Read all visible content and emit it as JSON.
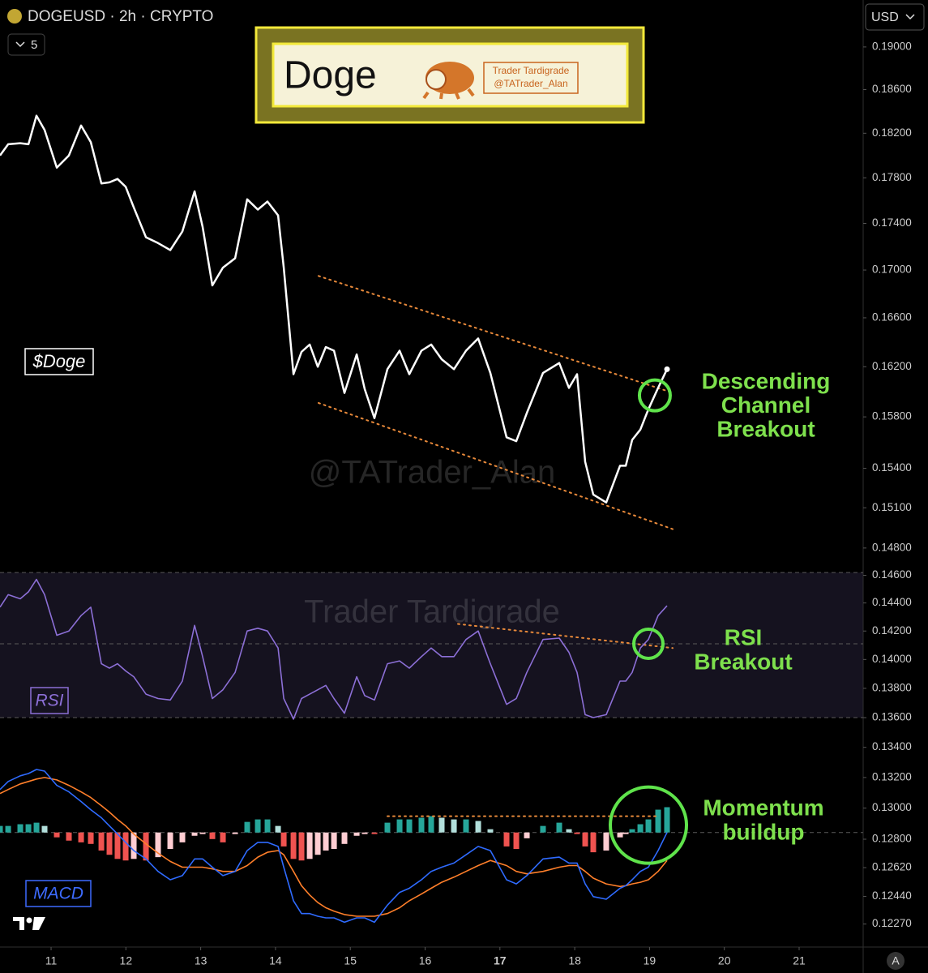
{
  "header": {
    "symbol_line": "DOGEUSD · 2h · CRYPTO",
    "interval_count": "5",
    "currency": "USD",
    "auto_button": "A"
  },
  "banner": {
    "title": "Doge",
    "brand": "Trader Tardigrade",
    "handle": "@TATrader_Alan"
  },
  "chart_data": {
    "type": "line",
    "log_scale": true,
    "xlim": [
      10.317,
      21.856
    ],
    "xticks": [
      11,
      12,
      13,
      14,
      15,
      16,
      17,
      18,
      19,
      20,
      21
    ],
    "xtick_bold": 17,
    "ylim": [
      0.1213,
      0.1945
    ],
    "yticks": [
      {
        "value": 0.19,
        "label": "0.19000"
      },
      {
        "value": 0.186,
        "label": "0.18600"
      },
      {
        "value": 0.182,
        "label": "0.18200"
      },
      {
        "value": 0.178,
        "label": "0.17800"
      },
      {
        "value": 0.174,
        "label": "0.17400"
      },
      {
        "value": 0.17,
        "label": "0.17000"
      },
      {
        "value": 0.166,
        "label": "0.16600"
      },
      {
        "value": 0.162,
        "label": "0.16200"
      },
      {
        "value": 0.158,
        "label": "0.15800"
      },
      {
        "value": 0.154,
        "label": "0.15400"
      },
      {
        "value": 0.151,
        "label": "0.15100"
      },
      {
        "value": 0.148,
        "label": "0.14800"
      },
      {
        "value": 0.146,
        "label": "0.14600"
      },
      {
        "value": 0.144,
        "label": "0.14400"
      },
      {
        "value": 0.142,
        "label": "0.14200"
      },
      {
        "value": 0.14,
        "label": "0.14000"
      },
      {
        "value": 0.138,
        "label": "0.13800"
      },
      {
        "value": 0.136,
        "label": "0.13600"
      },
      {
        "value": 0.134,
        "label": "0.13400"
      },
      {
        "value": 0.132,
        "label": "0.13200"
      },
      {
        "value": 0.13,
        "label": "0.13000"
      },
      {
        "value": 0.128,
        "label": "0.12800"
      },
      {
        "value": 0.1262,
        "label": "0.12620"
      },
      {
        "value": 0.1244,
        "label": "0.12440"
      },
      {
        "value": 0.1227,
        "label": "0.12270"
      }
    ],
    "x": [
      10.317,
      10.426,
      10.588,
      10.697,
      10.805,
      10.913,
      11.076,
      11.238,
      11.401,
      11.531,
      11.672,
      11.78,
      11.888,
      11.997,
      12.105,
      12.268,
      12.43,
      12.593,
      12.755,
      12.918,
      13.026,
      13.156,
      13.297,
      13.46,
      13.622,
      13.763,
      13.893,
      14.034,
      14.11,
      14.24,
      14.348,
      14.457,
      14.565,
      14.673,
      14.782,
      14.922,
      15.085,
      15.193,
      15.323,
      15.496,
      15.659,
      15.789,
      15.951,
      16.081,
      16.222,
      16.385,
      16.547,
      16.71,
      16.872,
      17.089,
      17.219,
      17.36,
      17.576,
      17.793,
      17.923,
      18.031,
      18.14,
      18.248,
      18.421,
      18.606,
      18.682,
      18.768,
      18.877,
      18.985,
      19.115,
      19.234
    ],
    "series": [
      {
        "name": "$Doge",
        "color": "#ffffff",
        "values": [
          0.18,
          0.181,
          0.1811,
          0.181,
          0.1836,
          0.1823,
          0.1789,
          0.18,
          0.1827,
          0.1812,
          0.1775,
          0.1776,
          0.1779,
          0.1772,
          0.1754,
          0.1728,
          0.1723,
          0.1717,
          0.1733,
          0.1768,
          0.1737,
          0.1687,
          0.1702,
          0.171,
          0.1761,
          0.1752,
          0.1759,
          0.1747,
          0.1702,
          0.1614,
          0.1632,
          0.1638,
          0.162,
          0.1636,
          0.1633,
          0.1599,
          0.163,
          0.1602,
          0.1579,
          0.1618,
          0.1633,
          0.1614,
          0.1633,
          0.1638,
          0.1626,
          0.1618,
          0.1633,
          0.1643,
          0.1615,
          0.1564,
          0.1561,
          0.1583,
          0.1615,
          0.1623,
          0.1603,
          0.1614,
          0.1545,
          0.152,
          0.1514,
          0.1542,
          0.1542,
          0.1562,
          0.157,
          0.1586,
          0.1603,
          0.1618
        ]
      },
      {
        "name": "RSI",
        "color": "#8c6fd6",
        "values": [
          0.1437,
          0.1446,
          0.1443,
          0.1448,
          0.1457,
          0.1446,
          0.1417,
          0.142,
          0.1431,
          0.1437,
          0.1397,
          0.1394,
          0.1397,
          0.1392,
          0.1388,
          0.1376,
          0.1373,
          0.1372,
          0.1385,
          0.1424,
          0.1402,
          0.1373,
          0.1379,
          0.1391,
          0.142,
          0.1422,
          0.142,
          0.1408,
          0.1373,
          0.1359,
          0.1373,
          0.1376,
          0.1379,
          0.1382,
          0.1373,
          0.1363,
          0.1388,
          0.1375,
          0.1372,
          0.1397,
          0.1399,
          0.1394,
          0.1402,
          0.1408,
          0.1402,
          0.1402,
          0.1414,
          0.142,
          0.1397,
          0.1369,
          0.1373,
          0.1391,
          0.1414,
          0.1415,
          0.1405,
          0.1391,
          0.1362,
          0.136,
          0.1362,
          0.1385,
          0.1385,
          0.1391,
          0.1408,
          0.1414,
          0.1431,
          0.1438
        ]
      },
      {
        "name": "MACD",
        "color": "#2f6bff",
        "values": [
          0.13121,
          0.13174,
          0.13211,
          0.13226,
          0.13253,
          0.13242,
          0.13148,
          0.13106,
          0.13043,
          0.1299,
          0.12938,
          0.12885,
          0.12833,
          0.1278,
          0.12728,
          0.12675,
          0.12596,
          0.12544,
          0.1257,
          0.12675,
          0.12675,
          0.12623,
          0.1257,
          0.12596,
          0.12728,
          0.1278,
          0.1278,
          0.12754,
          0.12623,
          0.12413,
          0.12334,
          0.12334,
          0.12318,
          0.12308,
          0.12308,
          0.12281,
          0.12308,
          0.12308,
          0.12281,
          0.12386,
          0.12465,
          0.12491,
          0.12544,
          0.12596,
          0.12623,
          0.12649,
          0.12701,
          0.12754,
          0.12728,
          0.12544,
          0.12518,
          0.1257,
          0.12675,
          0.12686,
          0.12649,
          0.12649,
          0.12518,
          0.12439,
          0.12423,
          0.12491,
          0.12507,
          0.12544,
          0.12596,
          0.12623,
          0.12728,
          0.12843
        ]
      },
      {
        "color": "#ff7f2a",
        "values": [
          0.13095,
          0.13121,
          0.13158,
          0.13174,
          0.1319,
          0.132,
          0.13184,
          0.13148,
          0.13106,
          0.13069,
          0.13016,
          0.12974,
          0.12927,
          0.12885,
          0.12833,
          0.1277,
          0.12712,
          0.12659,
          0.12623,
          0.12623,
          0.12623,
          0.12612,
          0.12596,
          0.12596,
          0.12633,
          0.12686,
          0.12717,
          0.12728,
          0.12701,
          0.12596,
          0.12507,
          0.12449,
          0.12402,
          0.1237,
          0.12349,
          0.12328,
          0.12318,
          0.12318,
          0.12318,
          0.12334,
          0.1237,
          0.12413,
          0.12455,
          0.12491,
          0.12528,
          0.1256,
          0.12596,
          0.12633,
          0.12665,
          0.12633,
          0.12596,
          0.12581,
          0.12596,
          0.12623,
          0.12633,
          0.12633,
          0.12596,
          0.12554,
          0.12518,
          0.12502,
          0.12507,
          0.12518,
          0.12528,
          0.12544,
          0.12596,
          0.12665
        ]
      }
    ],
    "histogram": {
      "zero_line": 0.12843,
      "colors": {
        "pos_rising": "#26a69a",
        "pos_falling": "#b2dfdb",
        "neg_falling": "#ef5350",
        "neg_rising": "#ffcdd2"
      },
      "values": [
        0.12885,
        0.12885,
        0.12896,
        0.12896,
        0.12906,
        0.12885,
        0.12812,
        0.12791,
        0.1278,
        0.1277,
        0.12728,
        0.12701,
        0.12675,
        0.12665,
        0.12675,
        0.12665,
        0.12686,
        0.12738,
        0.1278,
        0.12822,
        0.12833,
        0.12801,
        0.1278,
        0.12833,
        0.12911,
        0.12927,
        0.12927,
        0.12885,
        0.12754,
        0.12675,
        0.12665,
        0.12675,
        0.12701,
        0.12728,
        0.12738,
        0.1277,
        0.12822,
        0.12833,
        0.12833,
        0.12906,
        0.12927,
        0.12927,
        0.12938,
        0.12948,
        0.12938,
        0.12927,
        0.12927,
        0.12917,
        0.12864,
        0.12754,
        0.12738,
        0.12806,
        0.12885,
        0.12906,
        0.12864,
        0.12833,
        0.12754,
        0.12717,
        0.12728,
        0.12812,
        0.12833,
        0.12864,
        0.12896,
        0.12927,
        0.1299,
        0.13006
      ]
    },
    "rsi_band": {
      "upper": 0.1462,
      "middle": 0.1411,
      "lower": 0.136,
      "color": "#15121f"
    },
    "trendlines": [
      {
        "x": [
          14.575,
          19.31
        ],
        "values": [
          0.1695,
          0.1599
        ],
        "color": "#e8893a"
      },
      {
        "x": [
          14.575,
          19.31
        ],
        "values": [
          0.1591,
          0.1494
        ],
        "color": "#e8893a"
      },
      {
        "x": [
          16.439,
          19.31
        ],
        "values": [
          0.1425,
          0.1408
        ],
        "color": "#e8893a"
      },
      {
        "x": [
          15.496,
          19.093
        ],
        "values": [
          0.12948,
          0.12948
        ],
        "color": "#e8893a"
      }
    ],
    "highlights": [
      {
        "x": 19.071,
        "value": 0.1597
      },
      {
        "x": 18.985,
        "value": 0.1411
      },
      {
        "x": 18.985,
        "value": 0.1289
      }
    ],
    "highlight_color": "#5fe34b",
    "annotations": [
      {
        "lines": [
          "Descending",
          "Channel",
          "Breakout"
        ]
      },
      {
        "lines": [
          "RSI",
          "Breakout"
        ]
      },
      {
        "lines": [
          "Momentum",
          "buildup"
        ]
      }
    ],
    "annotation_color": "#7ee04d",
    "watermarks": [
      "@TATrader_Alan",
      "Trader Tardigrade"
    ]
  }
}
